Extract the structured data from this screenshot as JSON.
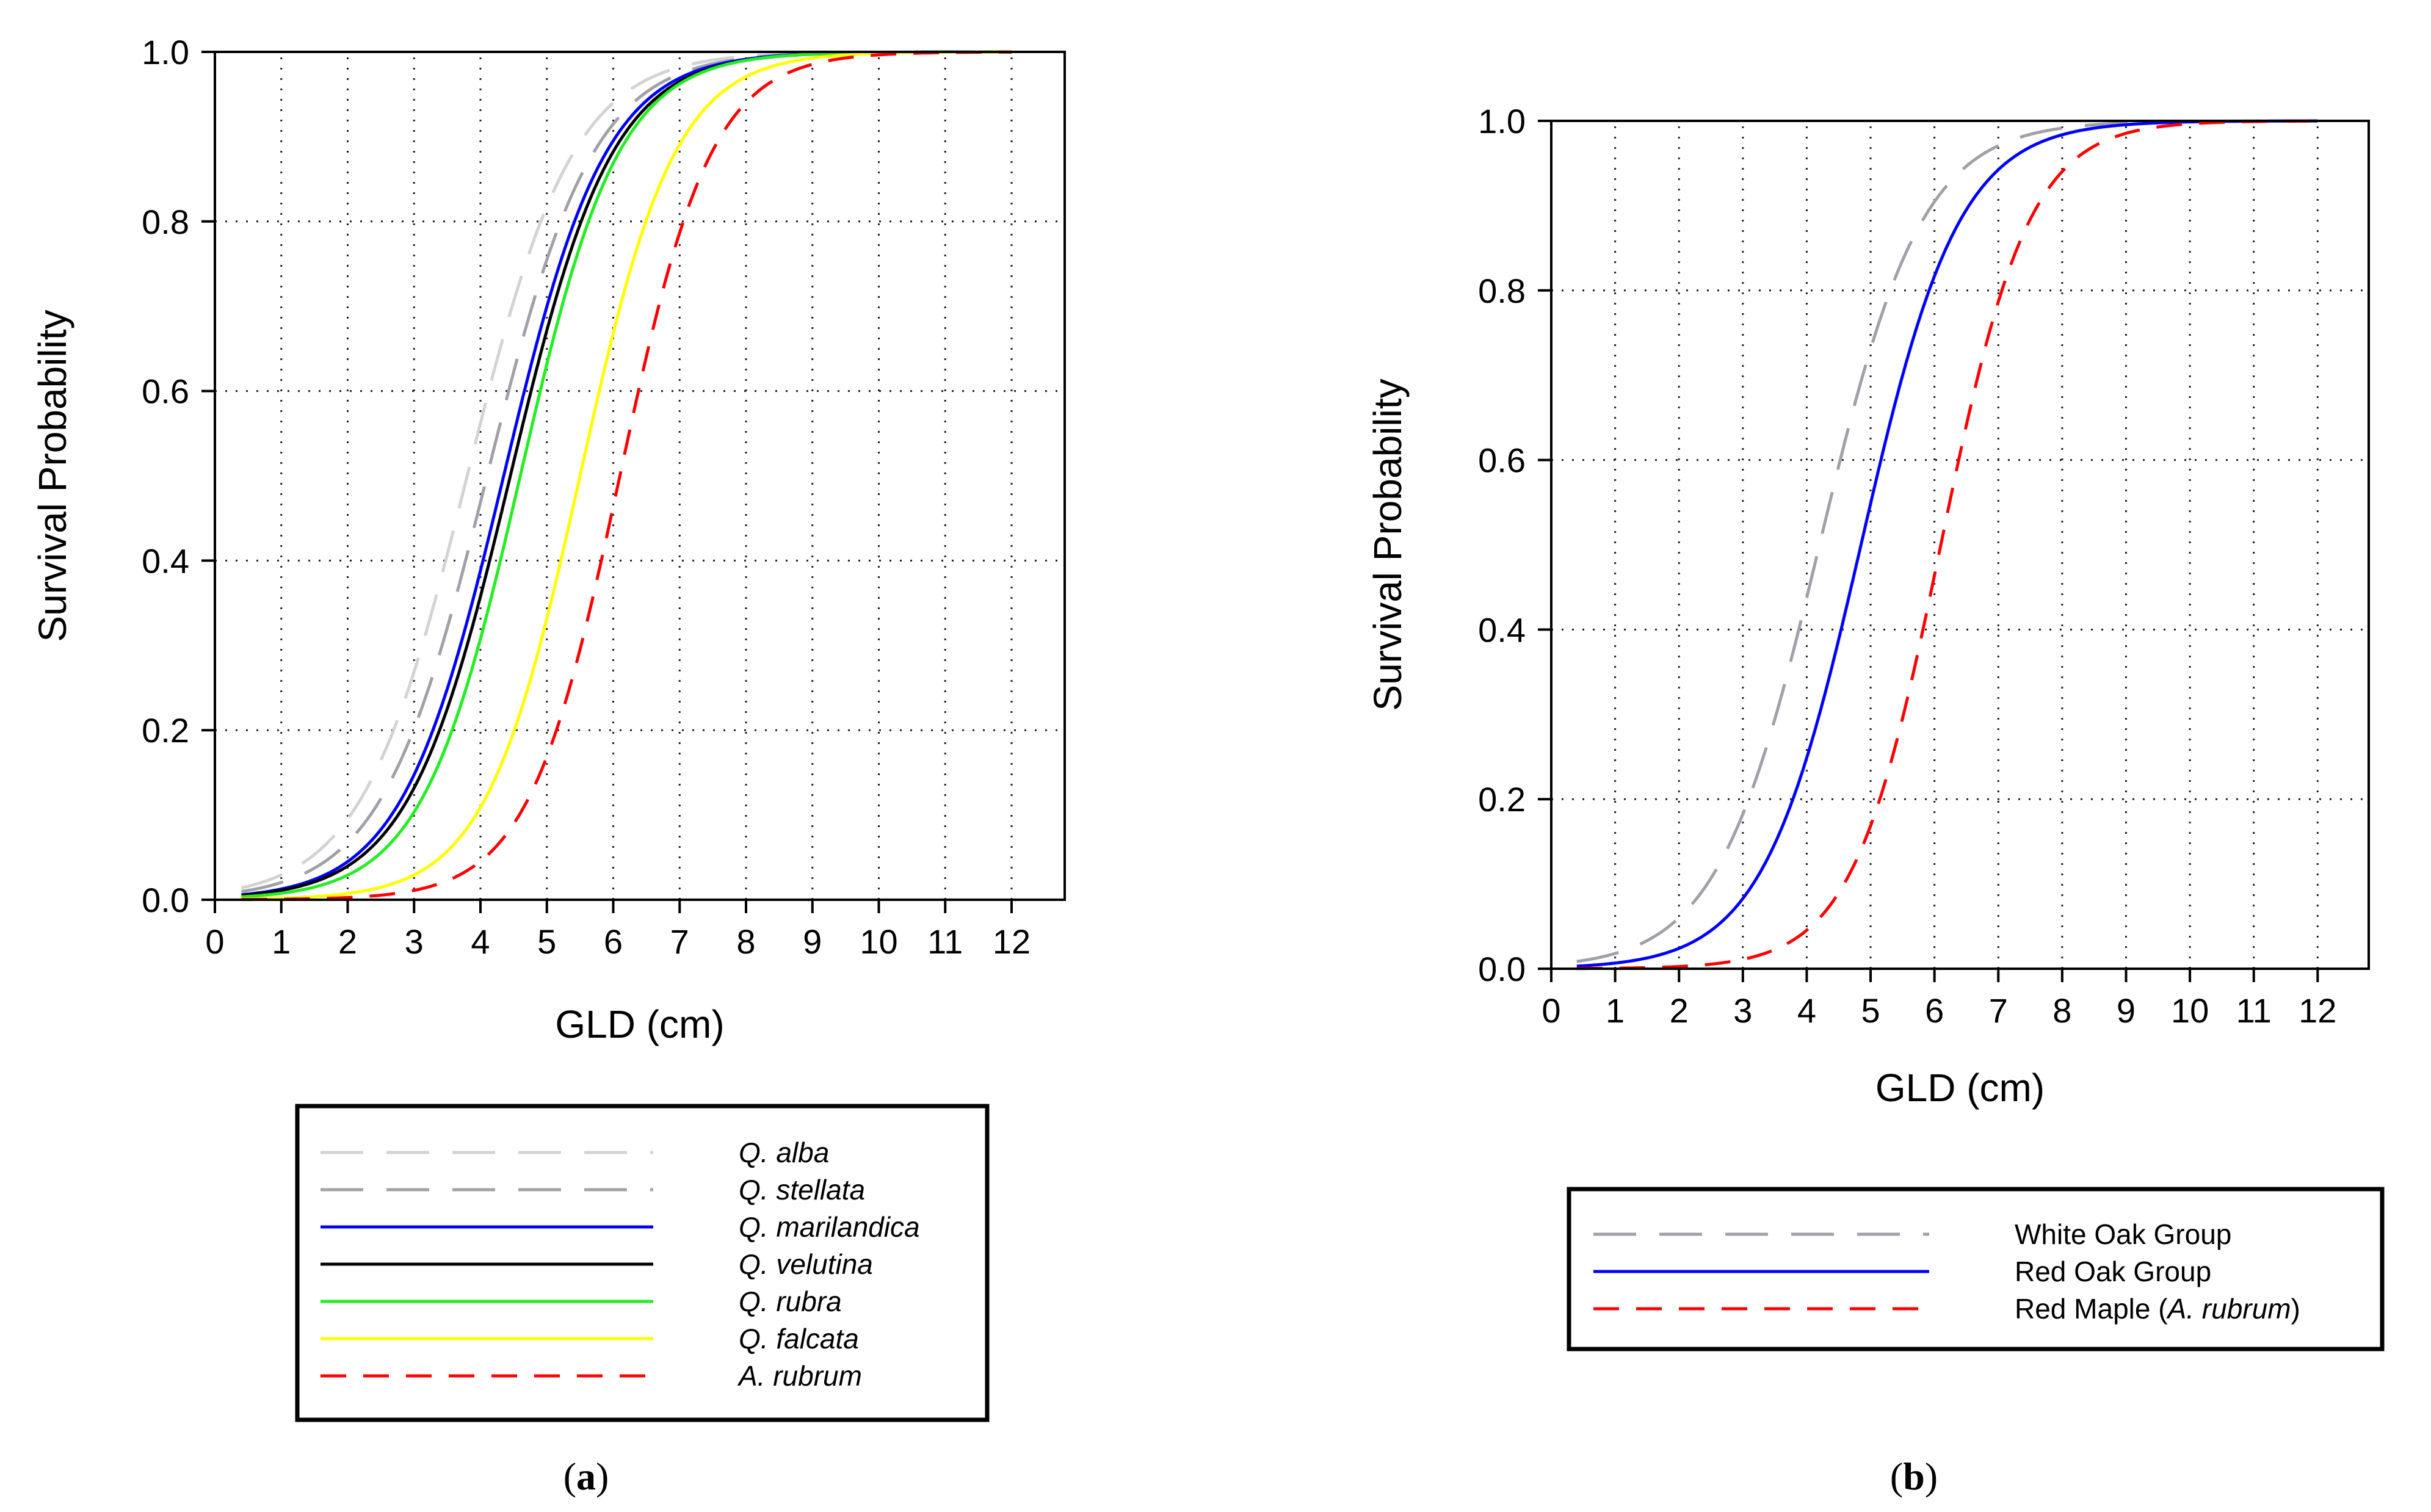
{
  "chart_data": [
    {
      "id": "a",
      "type": "line",
      "caption_prefix": "(",
      "caption_letter": "a",
      "caption_suffix": ")",
      "xlabel": "GLD (cm)",
      "ylabel": "Survival Probability",
      "xlim": [
        0,
        12.8
      ],
      "ylim": [
        0,
        1
      ],
      "xticks": [
        "0",
        "1",
        "2",
        "3",
        "4",
        "5",
        "6",
        "7",
        "8",
        "9",
        "10",
        "11",
        "12"
      ],
      "yticks": [
        "0.0",
        "0.2",
        "0.4",
        "0.6",
        "0.8",
        "1.0"
      ],
      "grid": "dotted",
      "legend_position": "below",
      "x_domain": [
        0.4,
        12
      ],
      "series": [
        {
          "name": "Q. alba",
          "italic_name": "Q. alba",
          "text_before": "",
          "text_after": "",
          "color": "#d3d3d3",
          "dash": "long",
          "midpoint": 3.8,
          "slope": 1.25
        },
        {
          "name": "Q. stellata",
          "italic_name": "Q. stellata",
          "text_before": "",
          "text_after": "",
          "color": "#a0a0a8",
          "dash": "long",
          "midpoint": 4.1,
          "slope": 1.25
        },
        {
          "name": "Q. marilandica",
          "italic_name": "Q. marilandica",
          "text_before": "",
          "text_after": "",
          "color": "#0000ff",
          "dash": "solid",
          "midpoint": 4.35,
          "slope": 1.3
        },
        {
          "name": "Q. velutina",
          "italic_name": "Q. velutina",
          "text_before": "",
          "text_after": "",
          "color": "#000000",
          "dash": "solid",
          "midpoint": 4.45,
          "slope": 1.3
        },
        {
          "name": "Q. rubra",
          "italic_name": "Q. rubra",
          "text_before": "",
          "text_after": "",
          "color": "#22ee22",
          "dash": "solid",
          "midpoint": 4.6,
          "slope": 1.35
        },
        {
          "name": "Q. falcata",
          "italic_name": "Q. falcata",
          "text_before": "",
          "text_after": "",
          "color": "#ffff00",
          "dash": "solid",
          "midpoint": 5.5,
          "slope": 1.4
        },
        {
          "name": "A. rubrum",
          "italic_name": "A. rubrum",
          "text_before": "",
          "text_after": "",
          "color": "#ff0000",
          "dash": "short",
          "midpoint": 6.1,
          "slope": 1.45
        }
      ]
    },
    {
      "id": "b",
      "type": "line",
      "caption_prefix": "(",
      "caption_letter": "b",
      "caption_suffix": ")",
      "xlabel": "GLD (cm)",
      "ylabel": "Survival Probability",
      "xlim": [
        0,
        12.8
      ],
      "ylim": [
        0,
        1
      ],
      "xticks": [
        "0",
        "1",
        "2",
        "3",
        "4",
        "5",
        "6",
        "7",
        "8",
        "9",
        "10",
        "11",
        "12"
      ],
      "yticks": [
        "0.0",
        "0.2",
        "0.4",
        "0.6",
        "0.8",
        "1.0"
      ],
      "grid": "dotted",
      "legend_position": "below",
      "x_domain": [
        0.4,
        12
      ],
      "series": [
        {
          "name": "White Oak Group",
          "italic_name": "",
          "text_before": "White Oak Group",
          "text_after": "",
          "color": "#a0a0a8",
          "dash": "long",
          "midpoint": 4.2,
          "slope": 1.25
        },
        {
          "name": "Red Oak Group",
          "italic_name": "",
          "text_before": "Red Oak Group",
          "text_after": "",
          "color": "#0000ff",
          "dash": "solid",
          "midpoint": 4.85,
          "slope": 1.3
        },
        {
          "name": "Red Maple (A. rubrum)",
          "italic_name": "A. rubrum",
          "text_before": "Red Maple (",
          "text_after": ")",
          "color": "#ff0000",
          "dash": "short",
          "midpoint": 6.1,
          "slope": 1.45
        }
      ]
    }
  ]
}
